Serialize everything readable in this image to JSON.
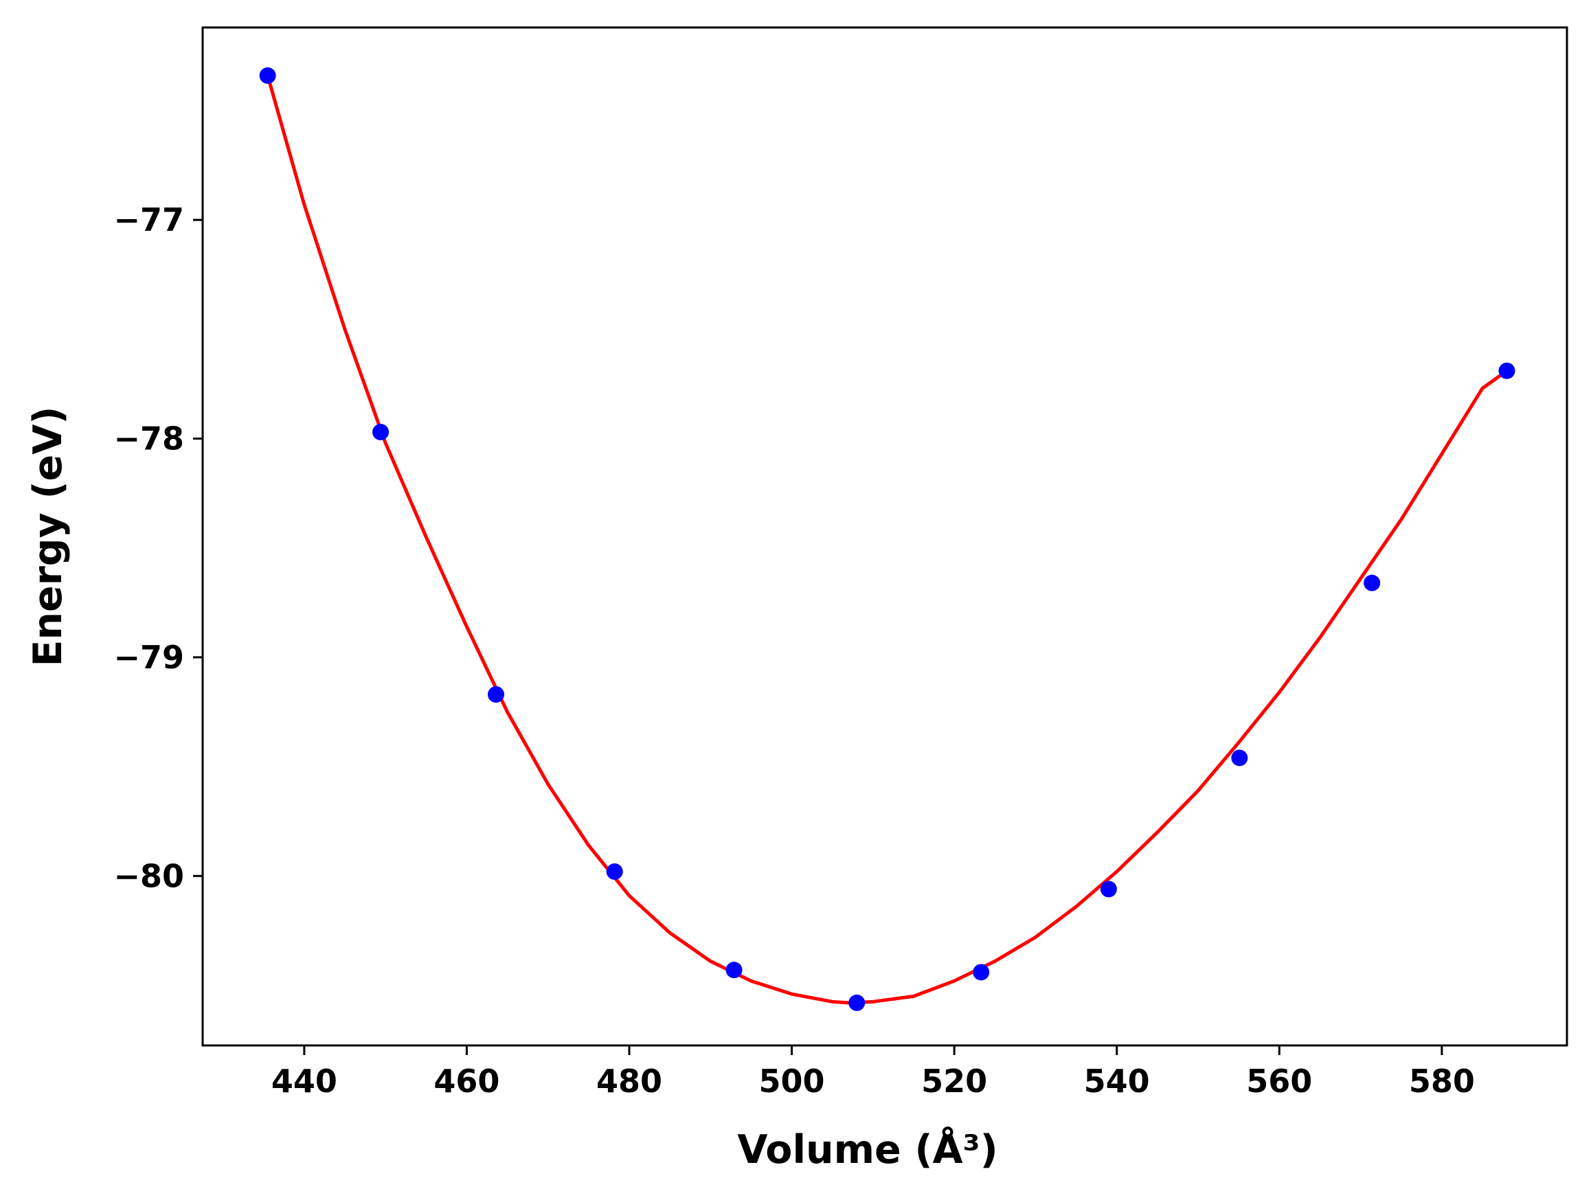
{
  "chart_data": {
    "type": "line",
    "xlabel": "Volume (Å³)",
    "ylabel": "Energy (eV)",
    "xlim": [
      427.5,
      595.4
    ],
    "ylim": [
      -80.775,
      -76.12
    ],
    "x_ticks": [
      440,
      460,
      480,
      500,
      520,
      540,
      560,
      580
    ],
    "y_ticks": [
      -77,
      -78,
      -79,
      -80
    ],
    "x_tick_labels": [
      "440",
      "460",
      "480",
      "500",
      "520",
      "540",
      "560",
      "580"
    ],
    "y_tick_labels": [
      "−77",
      "−78",
      "−79",
      "−80"
    ],
    "grid": false,
    "colors": {
      "fit_line": "#ff0000",
      "data_points": "#0000ff",
      "axes": "#000000",
      "background": "#ffffff"
    },
    "series": [
      {
        "kind": "points",
        "x": [
          435.5,
          449.4,
          463.6,
          478.2,
          492.9,
          508.0,
          523.3,
          539.0,
          555.1,
          571.4,
          588.0
        ],
        "y": [
          -76.34,
          -77.97,
          -79.17,
          -79.98,
          -80.43,
          -80.58,
          -80.44,
          -80.06,
          -79.46,
          -78.66,
          -77.69
        ]
      },
      {
        "kind": "fit-curve",
        "x": [
          435.5,
          440,
          445,
          450,
          455,
          460,
          465,
          470,
          475,
          480,
          485,
          490,
          495,
          500,
          505,
          507,
          510,
          515,
          520,
          525,
          530,
          535,
          540,
          545,
          550,
          555,
          560,
          565,
          570,
          575,
          580,
          585,
          588
        ],
        "y": [
          -76.34,
          -76.93,
          -77.5,
          -78.02,
          -78.45,
          -78.86,
          -79.25,
          -79.58,
          -79.86,
          -80.09,
          -80.26,
          -80.39,
          -80.48,
          -80.54,
          -80.575,
          -80.58,
          -80.575,
          -80.55,
          -80.48,
          -80.39,
          -80.28,
          -80.14,
          -79.98,
          -79.8,
          -79.61,
          -79.39,
          -79.16,
          -78.91,
          -78.64,
          -78.37,
          -78.07,
          -77.77,
          -77.69
        ]
      }
    ]
  }
}
